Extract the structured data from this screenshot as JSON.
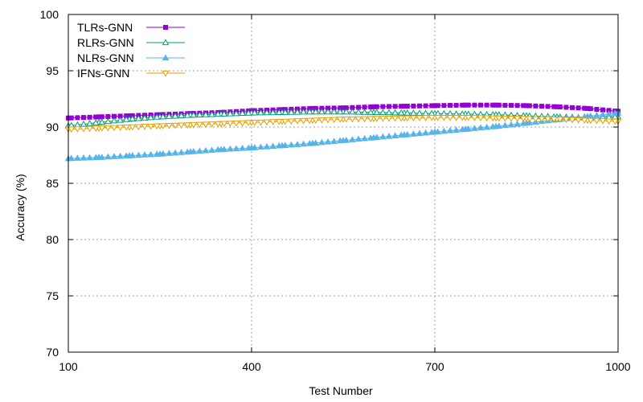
{
  "chart_data": {
    "type": "line",
    "title": "",
    "xlabel": "Test Number",
    "ylabel": "Accuracy (%)",
    "xlim": [
      100,
      1000
    ],
    "ylim": [
      70,
      100
    ],
    "xticks": [
      100,
      400,
      700,
      1000
    ],
    "yticks": [
      70,
      75,
      80,
      85,
      90,
      95,
      100
    ],
    "grid": true,
    "legend_position": "top-left",
    "x": [
      100,
      150,
      200,
      250,
      300,
      350,
      400,
      450,
      500,
      550,
      600,
      650,
      700,
      750,
      800,
      850,
      900,
      950,
      1000
    ],
    "series": [
      {
        "name": "TLRs-GNN",
        "color": "#9400d3",
        "marker": "filled-square",
        "values": [
          90.8,
          90.9,
          91.0,
          91.1,
          91.2,
          91.3,
          91.45,
          91.55,
          91.65,
          91.7,
          91.8,
          91.85,
          91.9,
          91.95,
          91.95,
          91.9,
          91.8,
          91.65,
          91.4
        ]
      },
      {
        "name": "RLRs-GNN",
        "color": "#009e73",
        "marker": "open-triangle-up",
        "values": [
          90.1,
          90.4,
          90.7,
          90.9,
          91.05,
          91.15,
          91.25,
          91.3,
          91.35,
          91.35,
          91.3,
          91.25,
          91.2,
          91.15,
          91.1,
          91.0,
          90.9,
          90.85,
          90.9
        ]
      },
      {
        "name": "NLRs-GNN",
        "color": "#56b4e9",
        "marker": "filled-triangle-up",
        "values": [
          87.2,
          87.3,
          87.45,
          87.6,
          87.8,
          88.0,
          88.15,
          88.35,
          88.55,
          88.8,
          89.05,
          89.3,
          89.55,
          89.8,
          90.05,
          90.35,
          90.65,
          90.95,
          91.25
        ]
      },
      {
        "name": "IFNs-GNN",
        "color": "#e69f00",
        "marker": "open-triangle-down",
        "values": [
          89.8,
          89.9,
          90.0,
          90.1,
          90.2,
          90.3,
          90.4,
          90.5,
          90.6,
          90.7,
          90.75,
          90.8,
          90.85,
          90.85,
          90.8,
          90.75,
          90.7,
          90.6,
          90.5
        ]
      }
    ]
  }
}
